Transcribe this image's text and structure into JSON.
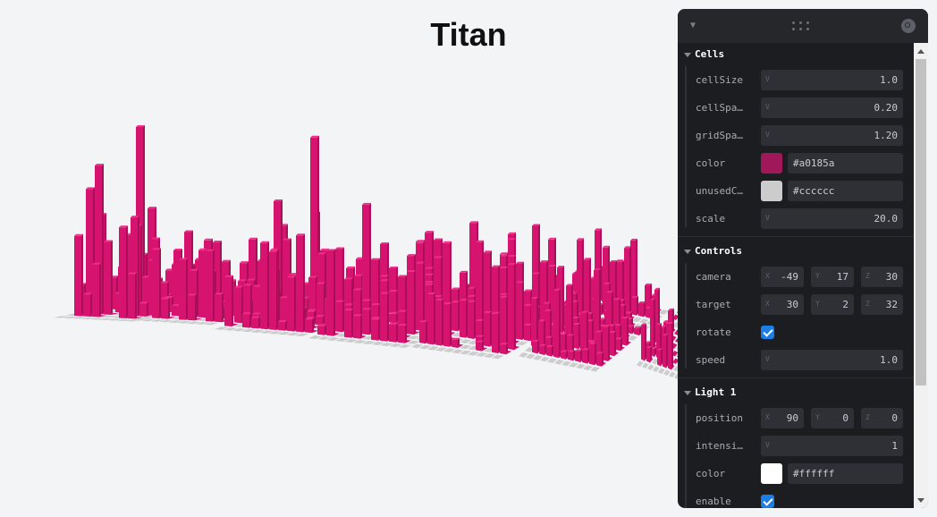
{
  "page": {
    "title": "Titan"
  },
  "colors": {
    "bar": "#d6136f",
    "bar_side": "#a80f58",
    "bar_top": "#ee2e88",
    "unused": "#cccccc"
  },
  "panel": {
    "folders": [
      {
        "title": "Cells",
        "rows": [
          {
            "type": "number",
            "label": "cellSize",
            "axis": "V",
            "value": "1.0"
          },
          {
            "type": "number",
            "label": "cellSpa…",
            "axis": "V",
            "value": "0.20"
          },
          {
            "type": "number",
            "label": "gridSpa…",
            "axis": "V",
            "value": "1.20"
          },
          {
            "type": "color",
            "label": "color",
            "hex": "#a0185a"
          },
          {
            "type": "color",
            "label": "unusedC…",
            "hex": "#cccccc"
          },
          {
            "type": "number",
            "label": "scale",
            "axis": "V",
            "value": "20.0"
          }
        ]
      },
      {
        "title": "Controls",
        "rows": [
          {
            "type": "vec3",
            "label": "camera",
            "x": "-49",
            "y": "17",
            "z": "30"
          },
          {
            "type": "vec3",
            "label": "target",
            "x": "30",
            "y": "2",
            "z": "32"
          },
          {
            "type": "bool",
            "label": "rotate",
            "checked": true
          },
          {
            "type": "number",
            "label": "speed",
            "axis": "V",
            "value": "1.0"
          }
        ]
      },
      {
        "title": "Light 1",
        "rows": [
          {
            "type": "vec3",
            "label": "position",
            "x": "90",
            "y": "0",
            "z": "0"
          },
          {
            "type": "number",
            "label": "intensi…",
            "axis": "V",
            "value": "1"
          },
          {
            "type": "color",
            "label": "color",
            "hex": "#ffffff"
          },
          {
            "type": "bool",
            "label": "enable",
            "checked": true
          }
        ]
      }
    ]
  }
}
